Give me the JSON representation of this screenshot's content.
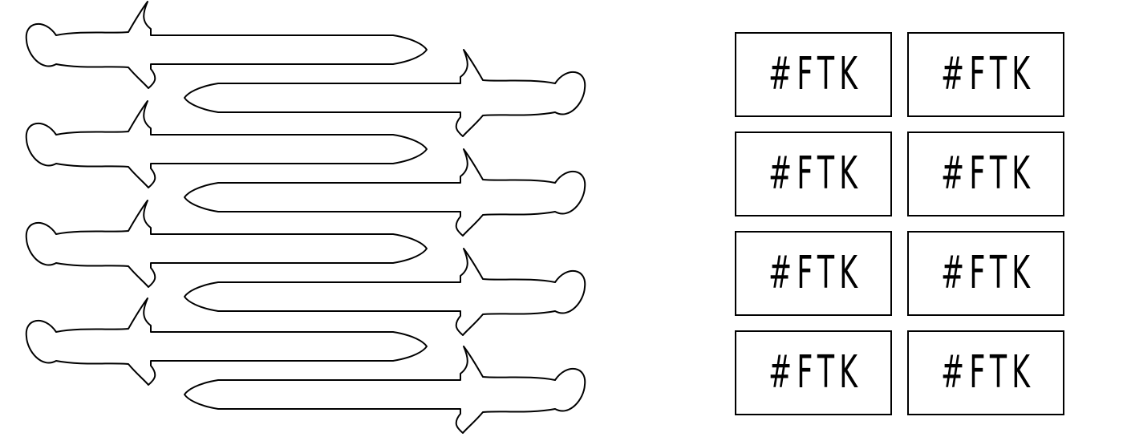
{
  "swords": {
    "count": 8,
    "stroke_color": "#000000",
    "fill_color": "#ffffff",
    "icon": "sword-icon"
  },
  "tags": {
    "border_color": "#000000",
    "items": [
      {
        "label": "#FTK"
      },
      {
        "label": "#FTK"
      },
      {
        "label": "#FTK"
      },
      {
        "label": "#FTK"
      },
      {
        "label": "#FTK"
      },
      {
        "label": "#FTK"
      },
      {
        "label": "#FTK"
      },
      {
        "label": "#FTK"
      }
    ]
  }
}
